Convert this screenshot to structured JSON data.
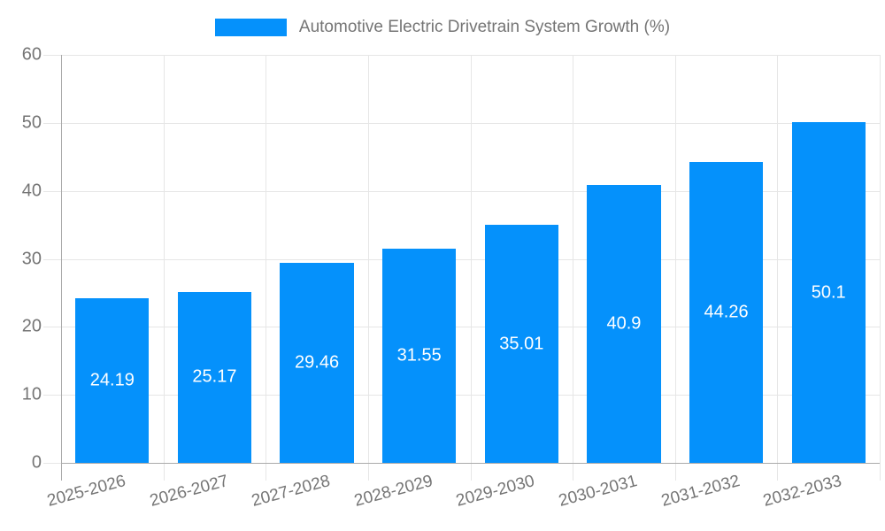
{
  "chart_data": {
    "type": "bar",
    "title": "Automotive Electric Drivetrain System Growth (%)",
    "categories": [
      "2025-2026",
      "2026-2027",
      "2027-2028",
      "2028-2029",
      "2029-2030",
      "2030-2031",
      "2031-2032",
      "2032-2033"
    ],
    "values": [
      24.19,
      25.17,
      29.46,
      31.55,
      35.01,
      40.9,
      44.26,
      50.1
    ],
    "value_labels": [
      "24.19",
      "25.17",
      "29.46",
      "31.55",
      "35.01",
      "40.9",
      "44.26",
      "50.1"
    ],
    "xlabel": "",
    "ylabel": "",
    "ylim": [
      0,
      60
    ],
    "yticks": [
      0,
      10,
      20,
      30,
      40,
      50,
      60
    ],
    "grid": true,
    "legend_position": "top",
    "colors": {
      "bar": "#0591fb",
      "grid": "#e6e6e6",
      "axis": "#aaaaaa",
      "text": "#757575",
      "value_label": "#ffffff",
      "background": "#ffffff"
    }
  }
}
